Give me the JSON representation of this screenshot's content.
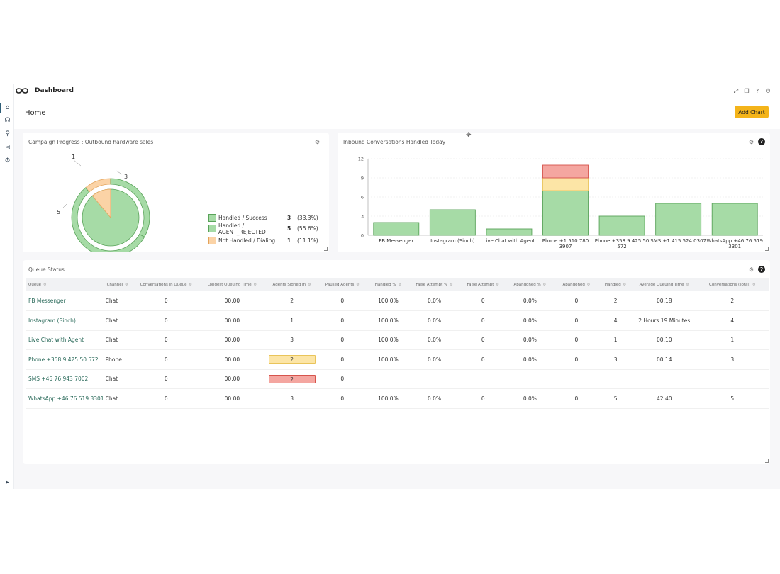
{
  "app": {
    "title": "Dashboard",
    "page_title": "Home",
    "add_chart_label": "Add Chart"
  },
  "campaign": {
    "title": "Campaign Progress : Outbound hardware sales",
    "callouts": {
      "not_handled": "1",
      "success": "3",
      "rejected": "5"
    },
    "legend": [
      {
        "label": "Handled / Success",
        "count": "3",
        "pct": "(33.3%)",
        "color": "#a6dba6"
      },
      {
        "label": "Handled / AGENT_REJECTED",
        "count": "5",
        "pct": "(55.6%)",
        "color": "#a6dba6"
      },
      {
        "label": "Not Handled / Dialing",
        "count": "1",
        "pct": "(11.1%)",
        "color": "#fbd3a6"
      }
    ],
    "chart_data": {
      "type": "pie",
      "values": [
        3,
        5,
        1
      ],
      "labels": [
        "Handled / Success",
        "Handled / AGENT_REJECTED",
        "Not Handled / Dialing"
      ],
      "colors": [
        "#a6dba6",
        "#a6dba6",
        "#fbd3a6"
      ]
    }
  },
  "inbound": {
    "title": "Inbound Conversations Handled Today",
    "chart_data": {
      "type": "bar",
      "categories": [
        "FB Messenger",
        "Instagram (Sinch)",
        "Live Chat with Agent",
        "Phone +1 510 780 3907",
        "Phone +358 9 425 50 572",
        "SMS +1 415 524 0307",
        "WhatsApp +46 76 519 3301"
      ],
      "series": [
        {
          "values": [
            2,
            4,
            1,
            7,
            3,
            5,
            5
          ],
          "color": "#a6dba6"
        },
        {
          "values": [
            0,
            0,
            0,
            2,
            0,
            0,
            0
          ],
          "color": "#fce5a6"
        },
        {
          "values": [
            0,
            0,
            0,
            2,
            0,
            0,
            0
          ],
          "color": "#f4a6a0"
        }
      ],
      "yticks": [
        "0",
        "3",
        "6",
        "9",
        "12"
      ],
      "ylim": [
        0,
        12
      ],
      "stacked": true
    }
  },
  "queue": {
    "title": "Queue Status",
    "columns": [
      "Queue",
      "Channel",
      "Conversations in Queue",
      "Longest Queuing Time",
      "Agents Signed In",
      "Paused Agents",
      "Handled %",
      "False Attempt %",
      "False Attempt",
      "Abandoned %",
      "Abandoned",
      "Handled",
      "Average Queuing Time",
      "Conversations (Total)"
    ],
    "rows": [
      {
        "queue": "FB Messenger",
        "channel": "Chat",
        "in_queue": "0",
        "longest": "00:00",
        "signed_in": "2",
        "paused": "0",
        "handled_pct": "100.0%",
        "false_pct": "0.0%",
        "false": "0",
        "aband_pct": "0.0%",
        "aband": "0",
        "handled": "2",
        "avg": "00:18",
        "total": "2",
        "agents_status": "normal"
      },
      {
        "queue": "Instagram (Sinch)",
        "channel": "Chat",
        "in_queue": "0",
        "longest": "00:00",
        "signed_in": "1",
        "paused": "0",
        "handled_pct": "100.0%",
        "false_pct": "0.0%",
        "false": "0",
        "aband_pct": "0.0%",
        "aband": "0",
        "handled": "4",
        "avg": "2 Hours 19 Minutes",
        "total": "4",
        "agents_status": "normal"
      },
      {
        "queue": "Live Chat with Agent",
        "channel": "Chat",
        "in_queue": "0",
        "longest": "00:00",
        "signed_in": "3",
        "paused": "0",
        "handled_pct": "100.0%",
        "false_pct": "0.0%",
        "false": "0",
        "aband_pct": "0.0%",
        "aband": "0",
        "handled": "1",
        "avg": "00:10",
        "total": "1",
        "agents_status": "normal"
      },
      {
        "queue": "Phone +358 9 425 50 572",
        "channel": "Phone",
        "in_queue": "0",
        "longest": "00:00",
        "signed_in": "2",
        "paused": "0",
        "handled_pct": "100.0%",
        "false_pct": "0.0%",
        "false": "0",
        "aband_pct": "0.0%",
        "aband": "0",
        "handled": "3",
        "avg": "00:14",
        "total": "3",
        "agents_status": "warning"
      },
      {
        "queue": "SMS +46 76 943 7002",
        "channel": "Chat",
        "in_queue": "0",
        "longest": "00:00",
        "signed_in": "2",
        "paused": "0",
        "handled_pct": "",
        "false_pct": "",
        "false": "",
        "aband_pct": "",
        "aband": "",
        "handled": "",
        "avg": "",
        "total": "",
        "agents_status": "critical"
      },
      {
        "queue": "WhatsApp +46 76 519 3301",
        "channel": "Chat",
        "in_queue": "0",
        "longest": "00:00",
        "signed_in": "3",
        "paused": "0",
        "handled_pct": "100.0%",
        "false_pct": "0.0%",
        "false": "0",
        "aband_pct": "0.0%",
        "aband": "0",
        "handled": "5",
        "avg": "42:40",
        "total": "5",
        "agents_status": "normal"
      }
    ]
  },
  "icons": {
    "rail": [
      "home-icon",
      "headset-icon",
      "search-settings-icon",
      "megaphone-icon",
      "gear-icon"
    ],
    "rail_bottom": "play-icon",
    "top": [
      "expand-icon",
      "copy-icon",
      "help-circle-icon",
      "power-icon"
    ],
    "move": "move-icon"
  }
}
